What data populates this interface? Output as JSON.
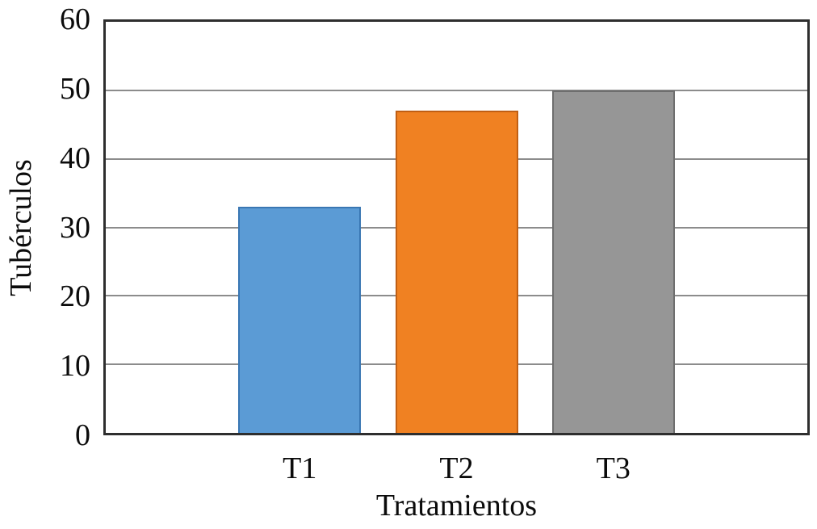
{
  "chart_data": {
    "type": "bar",
    "title": "",
    "categories": [
      "T1",
      "T2",
      "T3"
    ],
    "values": [
      33,
      47,
      50
    ],
    "xlabel": "Tratamientos",
    "ylabel": "Tubérculos",
    "ylim": [
      0,
      60
    ],
    "yticks": [
      0,
      10,
      20,
      30,
      40,
      50,
      60
    ],
    "grid": "horizontal",
    "legend": "none",
    "bar_colors": [
      "#5b9bd5",
      "#f08122",
      "#969696"
    ],
    "bar_border_colors": [
      "#3a77b3",
      "#c05f14",
      "#6e6e6e"
    ],
    "gridline_color": "#8c8c8c",
    "plot_border_color": "#2e2e2e",
    "background_color": "#ffffff",
    "text_color": "#0b0b0b"
  }
}
